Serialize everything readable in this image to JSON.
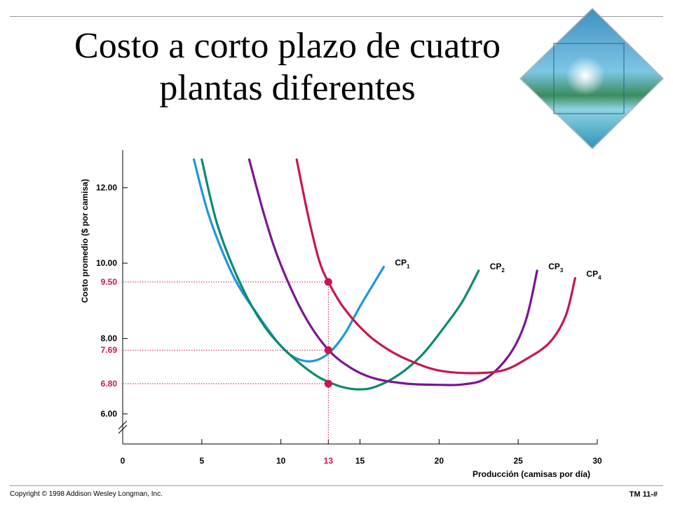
{
  "slide": {
    "title_line1": "Costo a corto plazo de cuatro",
    "title_line2": "plantas diferentes",
    "copyright": "Copyright © 1998 Addison Wesley Longman, Inc.",
    "page_label": "TM 11-#"
  },
  "chart_data": {
    "type": "line",
    "xlabel": "Producción (camisas por día)",
    "ylabel": "Costo promedio ($ por camisa)",
    "x_ticks": [
      0,
      5,
      10,
      13,
      15,
      20,
      25,
      30
    ],
    "x_tick_labels": [
      "0",
      "5",
      "10",
      "13",
      "15",
      "20",
      "25",
      "30"
    ],
    "highlight_x_tick": 13,
    "y_ticks": [
      6,
      8,
      10,
      12
    ],
    "y_tick_labels": [
      "6.00",
      "8.00",
      "10.00",
      "12.00"
    ],
    "y_highlight_ticks": [
      9.5,
      7.69,
      6.8
    ],
    "y_highlight_labels": [
      "9.50",
      "7.69",
      "6.80"
    ],
    "xlim": [
      0,
      30
    ],
    "ylim": [
      5.2,
      13.0
    ],
    "axis_break": true,
    "grid": false,
    "series": [
      {
        "name": "CP",
        "sub": "1",
        "color": "#1f97d6",
        "x": [
          4.5,
          5.5,
          7,
          8.5,
          10,
          11,
          12,
          13,
          14,
          15,
          16,
          16.5
        ],
        "y": [
          12.75,
          11.2,
          9.65,
          8.65,
          7.8,
          7.47,
          7.4,
          7.6,
          8.1,
          8.85,
          9.55,
          9.9
        ]
      },
      {
        "name": "CP",
        "sub": "2",
        "color": "#0a8a6e",
        "x": [
          5,
          6,
          7.5,
          9,
          10.5,
          12,
          13,
          14,
          15,
          16,
          17.5,
          19,
          20.5,
          21.5,
          22.5
        ],
        "y": [
          12.75,
          11.0,
          9.4,
          8.3,
          7.6,
          7.08,
          6.85,
          6.7,
          6.65,
          6.72,
          7.05,
          7.6,
          8.4,
          9.0,
          9.8
        ]
      },
      {
        "name": "CP",
        "sub": "3",
        "color": "#7a1690",
        "x": [
          8,
          9,
          10,
          11.5,
          13,
          14.5,
          16,
          18,
          20,
          21.5,
          23,
          24.5,
          25.5,
          26.2
        ],
        "y": [
          12.75,
          11.2,
          9.95,
          8.6,
          7.7,
          7.2,
          6.93,
          6.8,
          6.77,
          6.78,
          6.95,
          7.6,
          8.5,
          9.8
        ]
      },
      {
        "name": "CP",
        "sub": "4",
        "color": "#c8174e",
        "x": [
          11,
          11.7,
          12.4,
          13,
          14,
          15.5,
          17,
          18.5,
          20,
          22,
          24,
          25.5,
          27,
          28,
          28.6
        ],
        "y": [
          12.75,
          11.3,
          10.1,
          9.5,
          8.8,
          8.1,
          7.65,
          7.35,
          7.15,
          7.08,
          7.15,
          7.45,
          7.9,
          8.6,
          9.6
        ]
      }
    ],
    "points": [
      {
        "x": 13,
        "y": 9.5
      },
      {
        "x": 13,
        "y": 7.69
      },
      {
        "x": 13,
        "y": 6.8
      }
    ],
    "highlight_color": "#c8174e"
  }
}
